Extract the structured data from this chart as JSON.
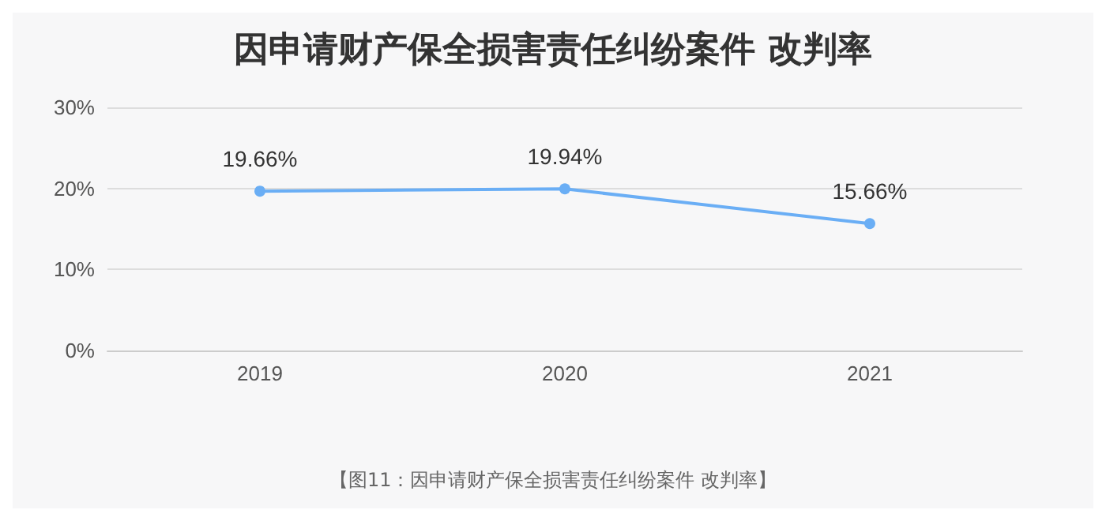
{
  "chart_data": {
    "type": "line",
    "title": "因申请财产保全损害责任纠纷案件 改判率",
    "categories": [
      "2019",
      "2020",
      "2021"
    ],
    "series": [
      {
        "color": "#6aaef5",
        "values": [
          19.66,
          19.94,
          15.66
        ],
        "value_labels": [
          "19.66%",
          "19.94%",
          "15.66%"
        ]
      }
    ],
    "ylim": [
      0,
      30
    ],
    "yticks": [
      {
        "value": 0,
        "label": "0%"
      },
      {
        "value": 10,
        "label": "10%"
      },
      {
        "value": 20,
        "label": "20%"
      },
      {
        "value": 30,
        "label": "30%"
      }
    ],
    "grid": "y",
    "marker": "circle",
    "line_style": "solid",
    "annotations": [
      "【图11：因申请财产保全损害责任纠纷案件 改判率】"
    ]
  }
}
